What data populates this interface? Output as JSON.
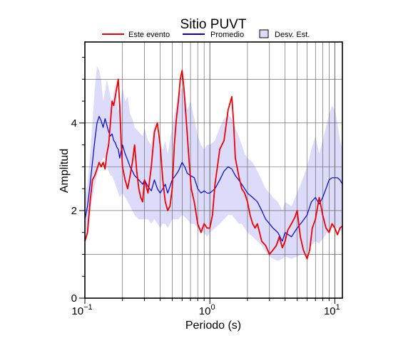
{
  "chart_data": {
    "type": "line",
    "title": "Sitio PUVT",
    "xlabel": "Periodo (s)",
    "ylabel": "Amplitud",
    "xscale": "log",
    "xlim": [
      0.1,
      11.5
    ],
    "ylim": [
      0,
      5.85
    ],
    "grid": true,
    "legend_position": "top",
    "x_ticks": [
      {
        "value": 0.1,
        "base": "10",
        "exp": "−1"
      },
      {
        "value": 1,
        "base": "10",
        "exp": "0"
      },
      {
        "value": 10,
        "base": "10",
        "exp": "1"
      }
    ],
    "y_ticks": [
      {
        "value": 0,
        "label": "0"
      },
      {
        "value": 2,
        "label": "2"
      },
      {
        "value": 4,
        "label": "4"
      }
    ],
    "legend": [
      {
        "label": "Este evento",
        "kind": "line",
        "color": "#ee0000"
      },
      {
        "label": "Promedio",
        "kind": "line",
        "color": "#0000dd"
      },
      {
        "label": "Desv. Est.",
        "kind": "box",
        "color": "#dcdcfa"
      }
    ],
    "series": [
      {
        "name": "Este evento",
        "color": "#ee0000",
        "x": [
          0.1,
          0.105,
          0.11,
          0.115,
          0.12,
          0.125,
          0.13,
          0.135,
          0.14,
          0.145,
          0.15,
          0.155,
          0.16,
          0.165,
          0.17,
          0.175,
          0.18,
          0.185,
          0.19,
          0.195,
          0.2,
          0.21,
          0.22,
          0.23,
          0.24,
          0.25,
          0.26,
          0.27,
          0.28,
          0.29,
          0.3,
          0.32,
          0.34,
          0.36,
          0.38,
          0.4,
          0.42,
          0.44,
          0.46,
          0.48,
          0.5,
          0.52,
          0.54,
          0.56,
          0.58,
          0.6,
          0.62,
          0.65,
          0.68,
          0.71,
          0.75,
          0.8,
          0.85,
          0.9,
          0.95,
          1.0,
          1.05,
          1.1,
          1.15,
          1.2,
          1.3,
          1.4,
          1.5,
          1.55,
          1.6,
          1.7,
          1.8,
          1.9,
          2.0,
          2.1,
          2.2,
          2.3,
          2.4,
          2.5,
          2.6,
          2.8,
          3.0,
          3.2,
          3.4,
          3.6,
          3.8,
          4.0,
          4.2,
          4.5,
          4.8,
          5.0,
          5.3,
          5.6,
          6.0,
          6.3,
          6.6,
          7.0,
          7.5,
          8.0,
          8.5,
          9.0,
          9.5,
          10.0,
          10.5,
          11.0,
          11.5
        ],
        "values": [
          1.3,
          1.5,
          2.2,
          2.7,
          2.8,
          2.95,
          3.1,
          3.0,
          3.1,
          2.95,
          3.3,
          3.5,
          4.0,
          4.5,
          4.4,
          4.6,
          4.8,
          5.0,
          4.4,
          3.6,
          3.0,
          2.7,
          2.5,
          2.8,
          3.1,
          3.5,
          2.9,
          2.5,
          2.3,
          2.2,
          2.7,
          2.4,
          3.0,
          3.8,
          4.0,
          3.5,
          2.7,
          2.2,
          2.0,
          2.1,
          2.5,
          3.5,
          4.1,
          4.5,
          5.0,
          5.2,
          4.8,
          4.0,
          3.2,
          2.5,
          2.2,
          1.7,
          1.5,
          1.7,
          1.6,
          1.6,
          1.9,
          2.6,
          3.0,
          3.4,
          3.6,
          4.3,
          4.6,
          4.0,
          3.2,
          2.8,
          2.5,
          2.4,
          2.2,
          1.9,
          1.7,
          1.6,
          1.7,
          1.5,
          1.3,
          1.2,
          1.0,
          1.1,
          1.2,
          1.4,
          1.15,
          1.3,
          1.55,
          1.7,
          1.85,
          2.0,
          1.4,
          1.1,
          0.9,
          1.1,
          1.6,
          1.8,
          2.3,
          1.9,
          1.6,
          1.5,
          1.7,
          1.6,
          1.45,
          1.6,
          1.65
        ]
      },
      {
        "name": "Promedio",
        "color": "#0000dd",
        "x": [
          0.1,
          0.105,
          0.11,
          0.115,
          0.12,
          0.125,
          0.13,
          0.135,
          0.14,
          0.145,
          0.15,
          0.155,
          0.16,
          0.165,
          0.17,
          0.175,
          0.18,
          0.185,
          0.19,
          0.2,
          0.21,
          0.22,
          0.23,
          0.24,
          0.25,
          0.27,
          0.29,
          0.3,
          0.32,
          0.34,
          0.36,
          0.38,
          0.4,
          0.42,
          0.44,
          0.46,
          0.48,
          0.5,
          0.53,
          0.56,
          0.6,
          0.63,
          0.66,
          0.7,
          0.75,
          0.8,
          0.85,
          0.9,
          0.95,
          1.0,
          1.1,
          1.2,
          1.3,
          1.4,
          1.5,
          1.6,
          1.7,
          1.8,
          1.9,
          2.0,
          2.2,
          2.4,
          2.6,
          2.8,
          3.0,
          3.2,
          3.5,
          3.8,
          4.0,
          4.5,
          5.0,
          5.5,
          6.0,
          6.5,
          7.0,
          7.5,
          8.0,
          8.5,
          9.0,
          9.5,
          10.0,
          10.5,
          11.0,
          11.5
        ],
        "values": [
          1.8,
          2.1,
          2.6,
          3.1,
          3.6,
          4.0,
          4.15,
          4.05,
          3.9,
          4.1,
          3.95,
          3.8,
          3.7,
          3.75,
          3.6,
          3.55,
          3.45,
          3.4,
          3.2,
          3.5,
          3.3,
          3.15,
          3.0,
          2.9,
          2.8,
          2.7,
          2.6,
          2.7,
          2.55,
          2.45,
          2.7,
          2.5,
          2.4,
          2.5,
          2.6,
          2.4,
          2.55,
          2.7,
          2.8,
          2.9,
          3.1,
          3.0,
          2.85,
          2.8,
          2.75,
          2.5,
          2.4,
          2.45,
          2.4,
          2.4,
          2.5,
          2.7,
          2.9,
          3.0,
          2.95,
          2.8,
          2.7,
          2.6,
          2.5,
          2.4,
          2.3,
          2.2,
          2.0,
          1.8,
          1.7,
          1.6,
          1.5,
          1.3,
          1.5,
          1.4,
          1.6,
          1.75,
          1.9,
          2.2,
          2.3,
          2.15,
          2.3,
          2.5,
          2.7,
          2.75,
          2.75,
          2.75,
          2.7,
          2.6
        ]
      },
      {
        "name": "Desv. Est.",
        "color": "#dcdcfa",
        "kind": "band",
        "x": [
          0.1,
          0.105,
          0.11,
          0.115,
          0.12,
          0.125,
          0.13,
          0.135,
          0.14,
          0.145,
          0.15,
          0.155,
          0.16,
          0.165,
          0.17,
          0.175,
          0.18,
          0.185,
          0.19,
          0.2,
          0.21,
          0.22,
          0.23,
          0.24,
          0.25,
          0.27,
          0.29,
          0.3,
          0.32,
          0.34,
          0.36,
          0.38,
          0.4,
          0.42,
          0.44,
          0.46,
          0.48,
          0.5,
          0.53,
          0.56,
          0.6,
          0.63,
          0.66,
          0.7,
          0.75,
          0.8,
          0.85,
          0.9,
          0.95,
          1.0,
          1.1,
          1.2,
          1.3,
          1.4,
          1.5,
          1.6,
          1.7,
          1.8,
          1.9,
          2.0,
          2.2,
          2.4,
          2.6,
          2.8,
          3.0,
          3.2,
          3.5,
          3.8,
          4.0,
          4.5,
          5.0,
          5.5,
          6.0,
          6.5,
          7.0,
          7.5,
          8.0,
          8.5,
          9.0,
          9.5,
          10.0,
          10.5,
          11.0,
          11.5
        ],
        "upper": [
          2.3,
          2.6,
          3.3,
          4.0,
          4.8,
          5.3,
          5.2,
          5.0,
          4.5,
          4.7,
          5.0,
          4.8,
          4.6,
          4.4,
          4.7,
          4.9,
          4.6,
          4.3,
          4.3,
          4.8,
          4.5,
          4.6,
          4.2,
          4.1,
          3.9,
          3.8,
          3.7,
          3.9,
          3.6,
          3.5,
          4.0,
          3.7,
          3.5,
          3.4,
          3.6,
          3.3,
          3.6,
          3.9,
          4.3,
          4.7,
          4.8,
          4.7,
          4.3,
          4.5,
          4.1,
          3.7,
          3.5,
          3.4,
          3.5,
          3.5,
          3.6,
          3.9,
          4.1,
          4.2,
          4.1,
          3.9,
          3.7,
          3.5,
          3.3,
          3.2,
          3.1,
          2.9,
          2.7,
          2.5,
          2.4,
          2.3,
          2.2,
          2.0,
          2.2,
          2.1,
          2.4,
          2.7,
          3.0,
          3.4,
          3.7,
          3.3,
          3.6,
          3.9,
          4.2,
          4.4,
          4.3,
          4.0,
          3.6,
          3.4
        ],
        "lower": [
          1.3,
          1.6,
          1.9,
          2.3,
          2.6,
          2.8,
          3.0,
          3.1,
          3.2,
          3.2,
          3.0,
          2.9,
          2.8,
          2.8,
          2.7,
          2.6,
          2.5,
          2.4,
          2.3,
          2.4,
          2.3,
          2.2,
          2.1,
          2.0,
          1.9,
          1.8,
          1.8,
          1.8,
          1.8,
          1.7,
          1.8,
          1.7,
          1.6,
          1.7,
          1.7,
          1.6,
          1.7,
          1.8,
          1.8,
          1.8,
          1.9,
          1.85,
          1.8,
          1.7,
          1.7,
          1.6,
          1.5,
          1.5,
          1.4,
          1.5,
          1.6,
          1.7,
          1.8,
          1.9,
          1.9,
          1.8,
          1.7,
          1.7,
          1.6,
          1.5,
          1.4,
          1.3,
          1.2,
          1.05,
          0.95,
          0.9,
          0.85,
          0.9,
          0.95,
          0.9,
          0.95,
          1.0,
          1.05,
          1.2,
          1.3,
          1.25,
          1.35,
          1.45,
          1.55,
          1.6,
          1.6,
          1.6,
          1.55,
          1.5
        ]
      }
    ]
  }
}
